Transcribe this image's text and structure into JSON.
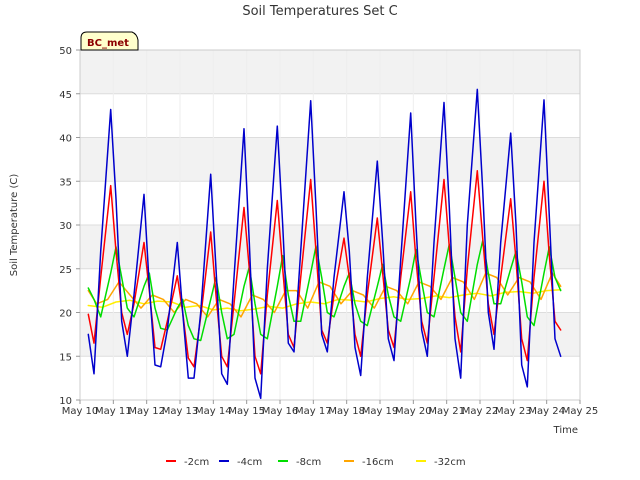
{
  "chart_data": {
    "type": "line",
    "title": "Soil Temperatures Set C",
    "xlabel": "Time",
    "ylabel": "Soil Temperature (C)",
    "ylim": [
      10,
      50
    ],
    "yticks": [
      10,
      15,
      20,
      25,
      30,
      35,
      40,
      45,
      50
    ],
    "xlim": [
      10,
      25
    ],
    "x_ticks": [
      {
        "value": 10,
        "label": "May 10"
      },
      {
        "value": 11,
        "label": "May 11"
      },
      {
        "value": 12,
        "label": "May 12"
      },
      {
        "value": 13,
        "label": "May 13"
      },
      {
        "value": 14,
        "label": "May 14"
      },
      {
        "value": 15,
        "label": "May 15"
      },
      {
        "value": 16,
        "label": "May 16"
      },
      {
        "value": 17,
        "label": "May 17"
      },
      {
        "value": 18,
        "label": "May 18"
      },
      {
        "value": 19,
        "label": "May 19"
      },
      {
        "value": 20,
        "label": "May 20"
      },
      {
        "value": 21,
        "label": "May 21"
      },
      {
        "value": 22,
        "label": "May 22"
      },
      {
        "value": 23,
        "label": "May 23"
      },
      {
        "value": 24,
        "label": "May 24"
      },
      {
        "value": 25,
        "label": "May 25"
      }
    ],
    "grid": true,
    "background_bands": "alternating grey/white horizontal bands",
    "annotation": "BC_met",
    "legend_position": "bottom-center",
    "series": [
      {
        "name": "-2cm",
        "color": "#ff0000",
        "x": [
          10.25,
          10.42,
          10.62,
          10.92,
          11.08,
          11.25,
          11.42,
          11.62,
          11.92,
          12.08,
          12.25,
          12.42,
          12.62,
          12.92,
          13.08,
          13.25,
          13.42,
          13.62,
          13.92,
          14.08,
          14.25,
          14.42,
          14.62,
          14.92,
          15.08,
          15.25,
          15.42,
          15.62,
          15.92,
          16.08,
          16.25,
          16.42,
          16.62,
          16.92,
          17.08,
          17.25,
          17.42,
          17.62,
          17.92,
          18.08,
          18.25,
          18.42,
          18.62,
          18.92,
          19.08,
          19.25,
          19.42,
          19.62,
          19.92,
          20.08,
          20.25,
          20.42,
          20.62,
          20.92,
          21.08,
          21.25,
          21.42,
          21.62,
          21.92,
          22.08,
          22.25,
          22.42,
          22.62,
          22.92,
          23.08,
          23.25,
          23.42,
          23.62,
          23.92,
          24.08,
          24.25,
          24.42
        ],
        "values": [
          19.8,
          16.5,
          24.0,
          34.5,
          27.0,
          20.0,
          17.5,
          21.0,
          28.0,
          22.5,
          16.0,
          15.8,
          19.0,
          24.2,
          20.0,
          14.8,
          13.8,
          19.5,
          29.2,
          22.0,
          15.0,
          13.8,
          21.0,
          32.0,
          25.0,
          15.0,
          13.0,
          22.0,
          32.8,
          25.0,
          17.5,
          16.0,
          24.0,
          35.2,
          27.0,
          18.0,
          16.5,
          22.0,
          28.5,
          24.0,
          17.5,
          15.0,
          22.0,
          30.8,
          24.5,
          18.0,
          16.0,
          24.0,
          33.8,
          26.0,
          19.0,
          16.5,
          24.0,
          35.2,
          27.5,
          19.5,
          15.5,
          25.0,
          36.2,
          28.5,
          21.0,
          17.5,
          24.0,
          33.0,
          26.0,
          17.0,
          14.5,
          24.0,
          35.0,
          26.5,
          19.0,
          18.0
        ]
      },
      {
        "name": "-4cm",
        "color": "#0000cc",
        "x": [
          10.25,
          10.42,
          10.62,
          10.92,
          11.08,
          11.25,
          11.42,
          11.62,
          11.92,
          12.08,
          12.25,
          12.42,
          12.62,
          12.92,
          13.08,
          13.25,
          13.42,
          13.62,
          13.92,
          14.08,
          14.25,
          14.42,
          14.62,
          14.92,
          15.08,
          15.25,
          15.42,
          15.62,
          15.92,
          16.08,
          16.25,
          16.42,
          16.62,
          16.92,
          17.08,
          17.25,
          17.42,
          17.62,
          17.92,
          18.08,
          18.25,
          18.42,
          18.62,
          18.92,
          19.08,
          19.25,
          19.42,
          19.62,
          19.92,
          20.08,
          20.25,
          20.42,
          20.62,
          20.92,
          21.08,
          21.25,
          21.42,
          21.62,
          21.92,
          22.08,
          22.25,
          22.42,
          22.62,
          22.92,
          23.08,
          23.25,
          23.42,
          23.62,
          23.92,
          24.08,
          24.25,
          24.42
        ],
        "values": [
          17.5,
          13.0,
          27.0,
          43.2,
          33.0,
          19.0,
          15.0,
          22.0,
          33.5,
          23.0,
          14.0,
          13.8,
          18.0,
          28.0,
          20.0,
          12.5,
          12.5,
          20.0,
          35.8,
          25.0,
          13.0,
          11.8,
          24.0,
          41.0,
          28.0,
          12.5,
          10.2,
          25.0,
          41.3,
          30.0,
          16.5,
          15.5,
          27.0,
          44.2,
          32.0,
          17.5,
          15.5,
          24.0,
          33.8,
          27.0,
          16.0,
          12.8,
          24.0,
          37.3,
          28.0,
          17.0,
          14.5,
          26.0,
          42.8,
          30.0,
          18.0,
          15.0,
          28.0,
          44.0,
          32.0,
          17.0,
          12.5,
          30.0,
          45.5,
          34.0,
          20.0,
          15.8,
          28.0,
          40.5,
          30.0,
          14.0,
          11.5,
          28.0,
          44.3,
          31.0,
          17.0,
          15.0
        ]
      },
      {
        "name": "-8cm",
        "color": "#00dd00",
        "x": [
          10.25,
          10.42,
          10.62,
          10.92,
          11.08,
          11.25,
          11.42,
          11.62,
          11.92,
          12.08,
          12.25,
          12.42,
          12.62,
          12.92,
          13.08,
          13.25,
          13.42,
          13.62,
          13.92,
          14.08,
          14.25,
          14.42,
          14.62,
          14.92,
          15.08,
          15.25,
          15.42,
          15.62,
          15.92,
          16.08,
          16.25,
          16.42,
          16.62,
          16.92,
          17.08,
          17.25,
          17.42,
          17.62,
          17.92,
          18.08,
          18.25,
          18.42,
          18.62,
          18.92,
          19.08,
          19.25,
          19.42,
          19.62,
          19.92,
          20.08,
          20.25,
          20.42,
          20.62,
          20.92,
          21.08,
          21.25,
          21.42,
          21.62,
          21.92,
          22.08,
          22.25,
          22.42,
          22.62,
          22.92,
          23.08,
          23.25,
          23.42,
          23.62,
          23.92,
          24.08,
          24.25,
          24.42
        ],
        "values": [
          22.8,
          21.5,
          19.5,
          24.5,
          27.5,
          24.0,
          20.5,
          19.5,
          23.0,
          24.5,
          20.5,
          18.2,
          18.0,
          20.5,
          21.5,
          18.5,
          17.0,
          16.8,
          21.5,
          24.0,
          20.0,
          17.0,
          17.5,
          23.0,
          25.2,
          21.0,
          17.5,
          17.0,
          23.0,
          26.5,
          22.0,
          19.0,
          19.0,
          24.5,
          27.6,
          24.0,
          20.0,
          19.5,
          23.0,
          24.5,
          21.0,
          19.0,
          18.5,
          23.0,
          25.5,
          22.0,
          19.5,
          19.0,
          24.0,
          27.2,
          23.5,
          20.0,
          19.5,
          25.0,
          27.8,
          24.0,
          20.0,
          19.0,
          25.5,
          28.2,
          24.5,
          21.0,
          21.0,
          25.0,
          27.0,
          23.5,
          19.5,
          18.5,
          24.5,
          27.5,
          24.0,
          22.5
        ]
      },
      {
        "name": "-16cm",
        "color": "#ffa500",
        "x": [
          10.25,
          10.5,
          10.83,
          11.17,
          11.5,
          11.83,
          12.17,
          12.5,
          12.83,
          13.17,
          13.5,
          13.83,
          14.17,
          14.5,
          14.83,
          15.17,
          15.5,
          15.83,
          16.17,
          16.5,
          16.83,
          17.17,
          17.5,
          17.83,
          18.17,
          18.5,
          18.83,
          19.17,
          19.5,
          19.83,
          20.17,
          20.5,
          20.83,
          21.17,
          21.5,
          21.83,
          22.17,
          22.5,
          22.83,
          23.17,
          23.5,
          23.83,
          24.17,
          24.42
        ],
        "values": [
          22.5,
          21.0,
          21.5,
          23.5,
          22.0,
          20.5,
          22.0,
          21.5,
          20.0,
          21.5,
          21.0,
          19.5,
          21.5,
          21.0,
          19.5,
          22.0,
          21.5,
          20.0,
          22.5,
          22.5,
          20.5,
          23.5,
          23.0,
          21.0,
          22.5,
          22.0,
          20.5,
          23.0,
          22.5,
          21.0,
          23.5,
          23.0,
          21.5,
          24.0,
          23.5,
          21.5,
          24.5,
          24.0,
          22.0,
          24.0,
          23.5,
          21.5,
          24.5,
          23.0
        ]
      },
      {
        "name": "-32cm",
        "color": "#ffee00",
        "x": [
          10.25,
          10.67,
          11.08,
          11.5,
          11.92,
          12.33,
          12.75,
          13.17,
          13.58,
          14.0,
          14.42,
          14.83,
          15.25,
          15.67,
          16.08,
          16.5,
          16.92,
          17.33,
          17.75,
          18.17,
          18.58,
          19.0,
          19.42,
          19.83,
          20.25,
          20.67,
          21.08,
          21.5,
          21.92,
          22.33,
          22.75,
          23.17,
          23.58,
          24.0,
          24.42
        ],
        "values": [
          20.8,
          20.6,
          21.2,
          21.4,
          21.0,
          21.3,
          21.2,
          20.6,
          20.8,
          20.3,
          20.5,
          20.2,
          20.4,
          20.7,
          20.5,
          21.0,
          21.2,
          21.0,
          21.5,
          21.4,
          21.2,
          21.6,
          21.8,
          21.5,
          21.6,
          21.9,
          21.7,
          22.0,
          22.2,
          21.9,
          22.3,
          22.4,
          22.2,
          22.5,
          22.6
        ]
      }
    ]
  }
}
